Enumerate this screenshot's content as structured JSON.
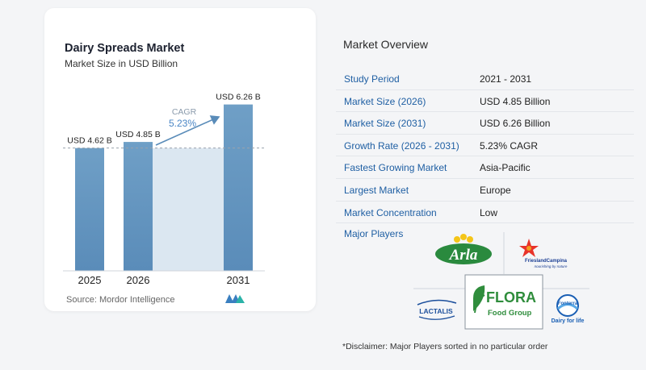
{
  "chart_data": {
    "type": "bar",
    "title": "Dairy Spreads Market",
    "subtitle": "Market Size in USD Billion",
    "categories": [
      "2025",
      "2026",
      "2031"
    ],
    "values": [
      4.62,
      4.85,
      6.26
    ],
    "value_labels": [
      "USD 4.62 B",
      "USD 4.85 B",
      "USD 6.26 B"
    ],
    "cagr_label": "CAGR",
    "cagr_value": "5.23%",
    "ylim": [
      0,
      6.8
    ],
    "colors": {
      "bar_top": "#6f9fc6",
      "bar_bottom": "#5a8cb9",
      "band": "#dbe7f1",
      "arrow": "#5a8cb9",
      "cagr_label": "#8a9aab",
      "cagr_value": "#4a86c5"
    }
  },
  "source": "Source:  Mordor Intelligence",
  "overview": {
    "title": "Market Overview",
    "rows": [
      {
        "label": "Study Period",
        "value": "2021 - 2031"
      },
      {
        "label": "Market Size (2026)",
        "value": "USD 4.85 Billion"
      },
      {
        "label": "Market Size (2031)",
        "value": "USD 6.26 Billion"
      },
      {
        "label": "Growth Rate (2026 - 2031)",
        "value": "5.23% CAGR"
      },
      {
        "label": "Fastest Growing Market",
        "value": "Asia-Pacific"
      },
      {
        "label": "Largest Market",
        "value": "Europe"
      },
      {
        "label": "Market Concentration",
        "value": "Low"
      }
    ]
  },
  "players": {
    "label": "Major Players",
    "logos": {
      "arla": "Arla",
      "friesland": "FrieslandCampina",
      "friesland_tagline": "nourishing by nature",
      "flora_1": "FLORA",
      "flora_2": "Food Group",
      "lactalis": "LACTALIS",
      "fonterra": "Fonterra",
      "fonterra_tagline": "Dairy for life"
    }
  },
  "disclaimer": "*Disclaimer: Major Players sorted in no particular order"
}
